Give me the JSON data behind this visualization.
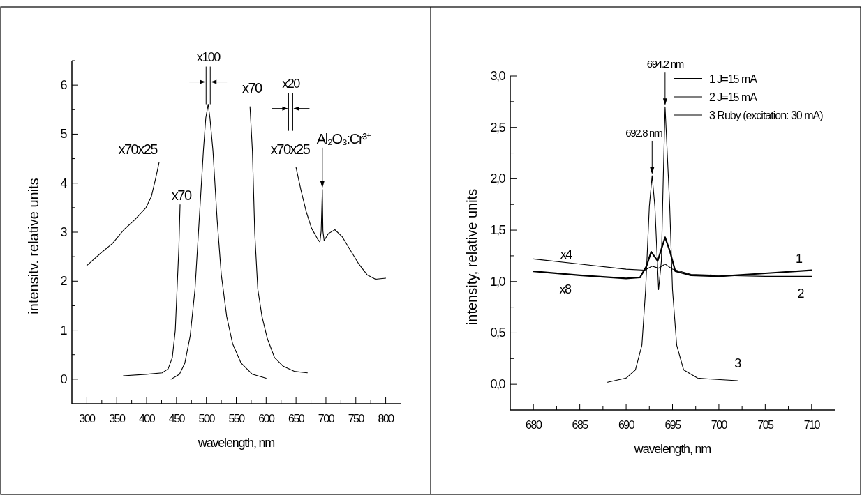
{
  "chart_data": [
    {
      "type": "line",
      "xlabel": "wavelength, nm",
      "ylabel": "intensitv. relative units",
      "xlim": [
        275,
        825
      ],
      "ylim": [
        -0.5,
        6.5
      ],
      "xticks": [
        300,
        {
          "value": 325,
          "label": null
        },
        350,
        {
          "value": 375,
          "label": null
        },
        400,
        {
          "value": 425,
          "label": null
        },
        450,
        {
          "value": 475,
          "label": null
        },
        500,
        {
          "value": 525,
          "label": null
        },
        550,
        {
          "value": 575,
          "label": null
        },
        600,
        {
          "value": 625,
          "label": null
        },
        650,
        {
          "value": 675,
          "label": null
        },
        700,
        {
          "value": 725,
          "label": null
        },
        750,
        {
          "value": 775,
          "label": null
        },
        800
      ],
      "yticks": [
        0,
        {
          "value": 0.5,
          "label": null
        },
        1,
        {
          "value": 1.5,
          "label": null
        },
        2,
        {
          "value": 2.5,
          "label": null
        },
        3,
        {
          "value": 3.5,
          "label": null
        },
        4,
        {
          "value": 4.5,
          "label": null
        },
        5,
        {
          "value": 5.5,
          "label": null
        },
        6,
        {
          "value": 6.5,
          "label": null
        }
      ],
      "grid": false,
      "legend": false,
      "marker": "none",
      "line_style": "solid",
      "series": [
        {
          "color": "#000000",
          "x": [
            300,
            324,
            343,
            362,
            380,
            399,
            408,
            415,
            421
          ],
          "values": [
            2.32,
            2.58,
            2.77,
            3.05,
            3.25,
            3.5,
            3.73,
            4.09,
            4.43
          ]
        },
        {
          "color": "#000000",
          "x": [
            361,
            399,
            426,
            436,
            443,
            448,
            451,
            454,
            456
          ],
          "values": [
            0.07,
            0.1,
            0.13,
            0.21,
            0.44,
            1.0,
            1.85,
            2.69,
            3.56
          ]
        },
        {
          "color": "#000000",
          "x": [
            441,
            455,
            464,
            473,
            481,
            488,
            495,
            499,
            503,
            506,
            511,
            518,
            525,
            534,
            544,
            558,
            577,
            600
          ],
          "values": [
            0,
            0.1,
            0.33,
            0.89,
            1.84,
            3.25,
            4.66,
            5.33,
            5.61,
            5.33,
            4.66,
            3.25,
            2.13,
            1.28,
            0.72,
            0.33,
            0.1,
            0.02
          ]
        },
        {
          "color": "#000000",
          "x": [
            573,
            577,
            581,
            586,
            593,
            602,
            614,
            628,
            647,
            669
          ],
          "values": [
            5.56,
            4.66,
            2.97,
            1.84,
            1.28,
            0.83,
            0.44,
            0.27,
            0.16,
            0.13
          ]
        },
        {
          "color": "#000000",
          "x": [
            650,
            658,
            667,
            676,
            686,
            690,
            692,
            694,
            695,
            697,
            704,
            715,
            727,
            741,
            755,
            769,
            783,
            800
          ],
          "values": [
            4.32,
            3.87,
            3.42,
            3.08,
            2.86,
            2.8,
            3.02,
            3.87,
            3.02,
            2.83,
            2.97,
            3.05,
            2.91,
            2.63,
            2.35,
            2.13,
            2.04,
            2.06
          ]
        }
      ],
      "annotations": [
        {
          "text": "x100",
          "x": 503,
          "y": 5.61
        },
        "x70x25",
        "x70",
        "x70",
        "x20",
        "x70x25",
        {
          "text": "Al₂O₃:Cr³⁺",
          "x": 694,
          "y": 3.87
        }
      ]
    },
    {
      "type": "line",
      "xlabel": "wavelength, nm",
      "ylabel": "intensity, relative units",
      "xlim": [
        677.5,
        712.5
      ],
      "ylim": [
        -0.25,
        3.0
      ],
      "xticks": [
        680,
        {
          "value": 682.5,
          "label": null
        },
        685,
        {
          "value": 687.5,
          "label": null
        },
        690,
        {
          "value": 692.5,
          "label": null
        },
        695,
        {
          "value": 697.5,
          "label": null
        },
        700,
        {
          "value": 702.5,
          "label": null
        },
        705,
        {
          "value": 707.5,
          "label": null
        },
        710
      ],
      "yticks": [
        {
          "value": 0,
          "label": "0,0"
        },
        {
          "value": 0.25,
          "label": null
        },
        {
          "value": 0.5,
          "label": "0,5"
        },
        {
          "value": 0.75,
          "label": null
        },
        {
          "value": 1,
          "label": "1,0"
        },
        {
          "value": 1.25,
          "label": null
        },
        {
          "value": 1.5,
          "label": "1,5"
        },
        {
          "value": 1.75,
          "label": null
        },
        {
          "value": 2,
          "label": "2,0"
        },
        {
          "value": 2.25,
          "label": null
        },
        {
          "value": 2.5,
          "label": "2,5"
        },
        {
          "value": 2.75,
          "label": null
        },
        {
          "value": 3,
          "label": "3,0"
        }
      ],
      "grid": false,
      "legend": "top right",
      "marker": "none",
      "line_style": "solid",
      "series": [
        {
          "name": "1 J=15 mA",
          "color": "#000000",
          "x": [
            680,
            685,
            690,
            691.5,
            692.2,
            692.7,
            693.4,
            694.2,
            694.7,
            695.3,
            697,
            700,
            705,
            710
          ],
          "values": [
            1.1,
            1.06,
            1.03,
            1.04,
            1.15,
            1.29,
            1.2,
            1.43,
            1.3,
            1.1,
            1.06,
            1.05,
            1.08,
            1.11
          ]
        },
        {
          "name": "2 J=15 mA",
          "color": "#000000",
          "x": [
            680,
            685,
            690,
            692,
            692.8,
            693.5,
            694.2,
            695,
            697,
            700,
            705,
            710
          ],
          "values": [
            1.22,
            1.17,
            1.12,
            1.11,
            1.15,
            1.13,
            1.17,
            1.12,
            1.07,
            1.06,
            1.05,
            1.05
          ]
        },
        {
          "name": "3 Ruby (excitation: 30 mA)",
          "color": "#000000",
          "x": [
            688,
            690,
            691,
            691.7,
            692.1,
            692.5,
            692.8,
            693.1,
            693.5,
            693.8,
            694.0,
            694.2,
            694.7,
            695,
            695.45,
            696.2,
            697.7,
            699.2,
            702
          ],
          "values": [
            0.02,
            0.06,
            0.14,
            0.38,
            0.92,
            1.73,
            2.03,
            1.73,
            0.92,
            1.2,
            2.0,
            2.7,
            1.73,
            0.92,
            0.38,
            0.14,
            0.06,
            0.05,
            0.035
          ]
        }
      ],
      "annotations": [
        {
          "text": "692.8 nm",
          "x": 692.8,
          "y": 2.03
        },
        {
          "text": "694.2 nm",
          "x": 694.2,
          "y": 2.7
        },
        "x4",
        "x8",
        "1",
        "2",
        "3"
      ]
    }
  ]
}
